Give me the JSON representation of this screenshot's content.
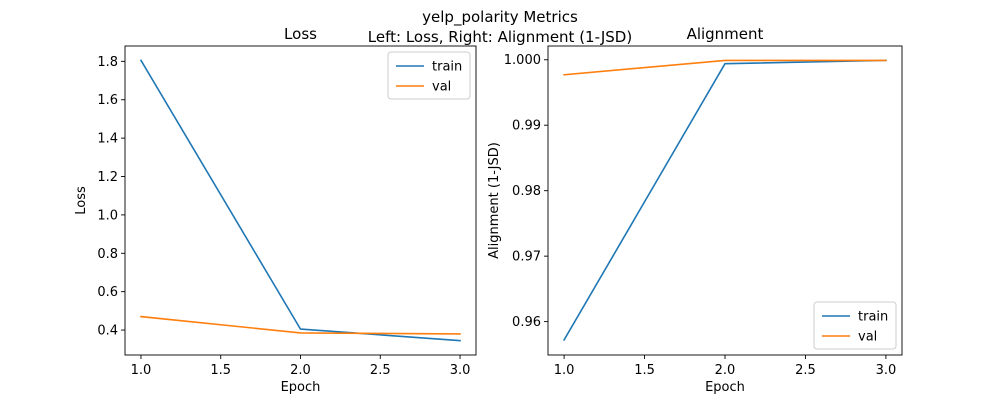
{
  "figure": {
    "title": "yelp_polarity Metrics",
    "subtitle": "Left: Loss, Right: Alignment (1-JSD)"
  },
  "colors": {
    "train": "#1f77b4",
    "val": "#ff7f0e"
  },
  "chart_data": [
    {
      "type": "line",
      "title": "Loss",
      "xlabel": "Epoch",
      "ylabel": "Loss",
      "xlim": [
        0.9,
        3.1
      ],
      "ylim": [
        0.27,
        1.88
      ],
      "xticks": [
        1.0,
        1.5,
        2.0,
        2.5,
        3.0
      ],
      "xtick_labels": [
        "1.0",
        "1.5",
        "2.0",
        "2.5",
        "3.0"
      ],
      "yticks": [
        0.4,
        0.6,
        0.8,
        1.0,
        1.2,
        1.4,
        1.6,
        1.8
      ],
      "ytick_labels": [
        "0.4",
        "0.6",
        "0.8",
        "1.0",
        "1.2",
        "1.4",
        "1.6",
        "1.8"
      ],
      "legend_position": "top-right",
      "grid": false,
      "x": [
        1,
        2,
        3
      ],
      "series": [
        {
          "name": "train",
          "values": [
            1.805,
            0.405,
            0.345
          ]
        },
        {
          "name": "val",
          "values": [
            0.47,
            0.385,
            0.38
          ]
        }
      ]
    },
    {
      "type": "line",
      "title": "Alignment",
      "xlabel": "Epoch",
      "ylabel": "Alignment (1-JSD)",
      "xlim": [
        0.9,
        3.1
      ],
      "ylim": [
        0.9549,
        1.0021
      ],
      "xticks": [
        1.0,
        1.5,
        2.0,
        2.5,
        3.0
      ],
      "xtick_labels": [
        "1.0",
        "1.5",
        "2.0",
        "2.5",
        "3.0"
      ],
      "yticks": [
        0.96,
        0.97,
        0.98,
        0.99,
        1.0
      ],
      "ytick_labels": [
        "0.96",
        "0.97",
        "0.98",
        "0.99",
        "1.000"
      ],
      "legend_position": "bottom-right",
      "grid": false,
      "x": [
        1,
        2,
        3
      ],
      "series": [
        {
          "name": "train",
          "values": [
            0.9572,
            0.9994,
            0.9999
          ]
        },
        {
          "name": "val",
          "values": [
            0.9977,
            0.9999,
            0.9999
          ]
        }
      ]
    }
  ]
}
